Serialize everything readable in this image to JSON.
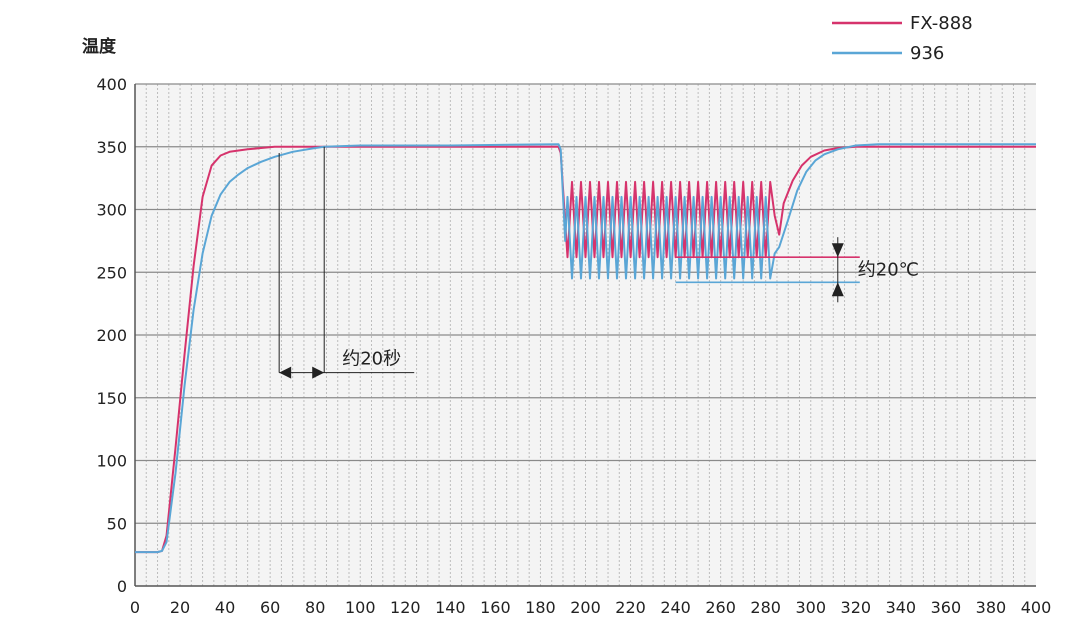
{
  "chart_data": {
    "type": "line",
    "title": "",
    "xlabel": "",
    "ylabel": "温度",
    "xlim": [
      0,
      400
    ],
    "ylim": [
      0,
      400
    ],
    "x_ticks": [
      0,
      20,
      40,
      60,
      80,
      100,
      120,
      140,
      160,
      180,
      200,
      220,
      240,
      260,
      280,
      300,
      320,
      340,
      360,
      380,
      400
    ],
    "y_ticks": [
      0,
      50,
      100,
      150,
      200,
      250,
      300,
      350,
      400
    ],
    "grid": {
      "horizontal": true,
      "vertical_minor": true
    },
    "legend_position": "top-right",
    "colors": {
      "FX-888": "#d6336c",
      "936": "#5aa6d6",
      "grid": "#8a8a8a",
      "minor_grid": "#bdbdbd",
      "annotation": "#222222"
    },
    "series": [
      {
        "name": "FX-888",
        "x": [
          0,
          10,
          12,
          14,
          18,
          22,
          26,
          30,
          34,
          38,
          42,
          46,
          50,
          56,
          62,
          70,
          80,
          100,
          140,
          188,
          189,
          191,
          200,
          240,
          284,
          286,
          288,
          292,
          296,
          300,
          306,
          312,
          320,
          340,
          400
        ],
        "y": [
          27,
          27,
          28,
          40,
          110,
          185,
          255,
          310,
          335,
          343,
          346,
          347,
          348,
          349,
          350,
          350,
          350,
          350,
          350,
          350,
          345,
          290,
          295,
          295,
          295,
          280,
          305,
          323,
          335,
          342,
          347,
          349,
          350,
          350,
          350
        ],
        "oscillation": {
          "x_range": [
            191,
            284
          ],
          "low": 262,
          "high": 322,
          "period": 4
        }
      },
      {
        "name": "936",
        "x": [
          0,
          10,
          12,
          14,
          18,
          22,
          26,
          30,
          34,
          38,
          42,
          46,
          50,
          56,
          62,
          70,
          80,
          84,
          100,
          140,
          188,
          189,
          191,
          200,
          240,
          284,
          286,
          290,
          294,
          298,
          302,
          306,
          312,
          320,
          330,
          400
        ],
        "y": [
          27,
          27,
          28,
          35,
          90,
          160,
          220,
          265,
          295,
          312,
          322,
          328,
          333,
          338,
          342,
          346,
          349,
          350,
          351,
          351,
          352,
          348,
          275,
          265,
          265,
          265,
          270,
          292,
          315,
          330,
          339,
          344,
          348,
          351,
          352,
          352
        ],
        "oscillation": {
          "x_range": [
            191,
            284
          ],
          "low": 245,
          "high": 310,
          "period": 4
        }
      }
    ],
    "annotations": [
      {
        "text": "约20秒",
        "type": "time-span",
        "x_start": 64,
        "x_end": 84,
        "y": 170
      },
      {
        "text": "约20℃",
        "type": "temperature-span",
        "x_start": 240,
        "x_end": 312,
        "y_high": 262,
        "y_low": 242
      }
    ]
  }
}
